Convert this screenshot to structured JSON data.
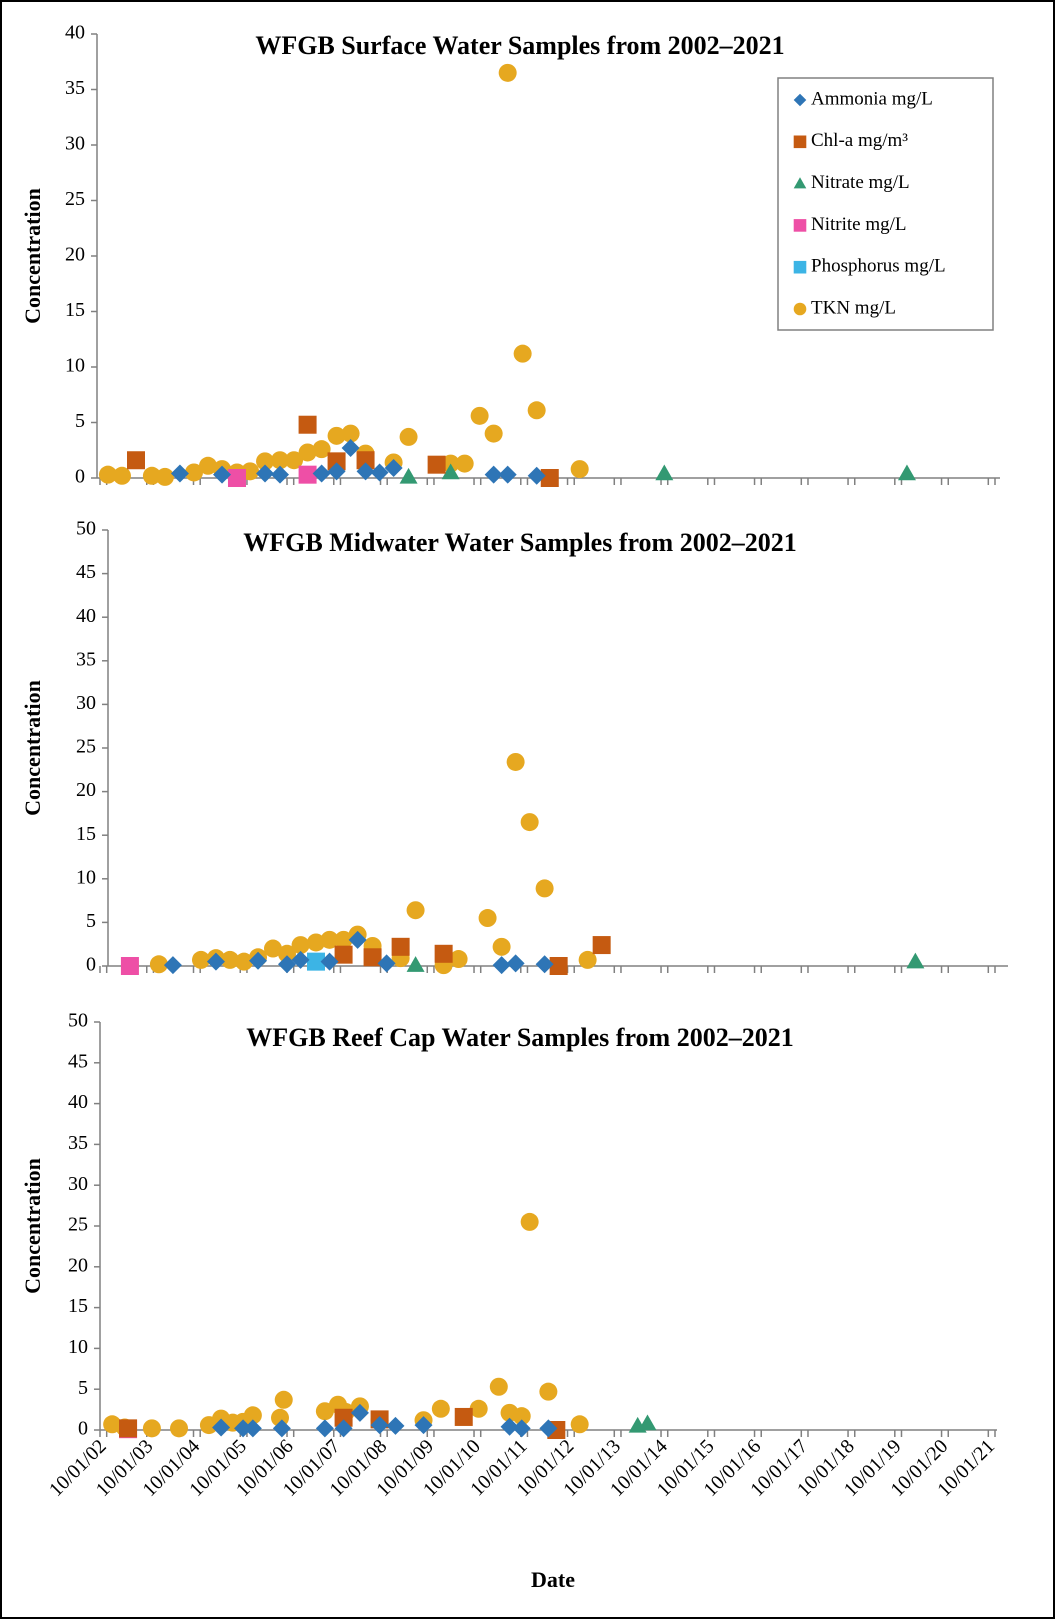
{
  "chart_data": [
    {
      "type": "scatter",
      "title": "WFGB Surface Water Samples from 2002–2021",
      "ylabel": "Concentration",
      "xlim": [
        2002.75,
        2022
      ],
      "ylim": [
        0,
        40
      ],
      "yticks": [
        0,
        5,
        10,
        15,
        20,
        25,
        30,
        35,
        40
      ],
      "legend": "upper right",
      "series": [
        {
          "name": "Ammonia mg/L",
          "color": "#2e75b6",
          "marker": "diamond",
          "x": [
            2004.46,
            2005.36,
            2006.28,
            2006.6,
            2007.49,
            2007.81,
            2008.11,
            2008.43,
            2008.73,
            2009.03,
            2011.17,
            2011.47,
            2012.09
          ],
          "values": [
            0.4,
            0.3,
            0.4,
            0.3,
            0.4,
            0.6,
            2.7,
            0.6,
            0.5,
            0.9,
            0.3,
            0.3,
            0.2
          ]
        },
        {
          "name": "Chl-a mg/m³",
          "color": "#c55a11",
          "marker": "square",
          "x": [
            2003.52,
            2007.19,
            2007.81,
            2008.43,
            2009.95,
            2012.37
          ],
          "values": [
            1.6,
            4.8,
            1.5,
            1.6,
            1.2,
            0
          ]
        },
        {
          "name": "Nitrate mg/L",
          "color": "#339972",
          "marker": "triangle",
          "x": [
            2009.35,
            2010.25,
            2014.82,
            2020.01
          ],
          "values": [
            0.1,
            0.5,
            0.4,
            0.4
          ]
        },
        {
          "name": "Nitrite mg/L",
          "color": "#ee4fa6",
          "marker": "square",
          "x": [
            2005.68,
            2007.19
          ],
          "values": [
            0,
            0.3
          ]
        },
        {
          "name": "Phosphorus mg/L",
          "color": "#3cb4e5",
          "marker": "square",
          "x": [],
          "values": []
        },
        {
          "name": "TKN mg/L",
          "color": "#e6a820",
          "marker": "circle",
          "x": [
            2002.92,
            2003.22,
            2003.86,
            2004.14,
            2004.76,
            2005.06,
            2005.36,
            2005.68,
            2005.96,
            2006.28,
            2006.6,
            2006.9,
            2007.19,
            2007.49,
            2007.81,
            2008.11,
            2008.43,
            2009.03,
            2009.35,
            2010.25,
            2010.55,
            2010.87,
            2011.17,
            2011.47,
            2011.79,
            2012.09,
            2013.01
          ],
          "values": [
            0.3,
            0.2,
            0.2,
            0.1,
            0.5,
            1.1,
            0.8,
            0.5,
            0.6,
            1.5,
            1.6,
            1.6,
            2.3,
            2.6,
            3.8,
            4.0,
            2.2,
            1.4,
            3.7,
            1.3,
            1.3,
            5.6,
            4.0,
            36.5,
            11.2,
            6.1,
            0.8
          ]
        }
      ]
    },
    {
      "type": "scatter",
      "title": "WFGB Midwater Water Samples from 2002–2021",
      "ylabel": "Concentration",
      "xlim": [
        2002.75,
        2022
      ],
      "ylim": [
        0,
        50
      ],
      "yticks": [
        0,
        5,
        10,
        15,
        20,
        25,
        30,
        35,
        40,
        45,
        50
      ],
      "series": [
        {
          "color": "#2e75b6",
          "marker": "diamond",
          "x": [
            2004.31,
            2005.23,
            2006.13,
            2006.75,
            2007.04,
            2007.66,
            2008.26,
            2008.88,
            2011.34,
            2011.64,
            2012.26
          ],
          "values": [
            0.1,
            0.5,
            0.6,
            0.2,
            0.7,
            0.5,
            3.0,
            0.3,
            0.1,
            0.3,
            0.2
          ]
        },
        {
          "color": "#c55a11",
          "marker": "square",
          "x": [
            2007.96,
            2008.58,
            2009.18,
            2010.1,
            2012.56,
            2013.48
          ],
          "values": [
            1.3,
            1.0,
            2.2,
            1.4,
            0,
            2.4
          ]
        },
        {
          "color": "#339972",
          "marker": "triangle",
          "x": [
            2009.5,
            2020.19
          ],
          "values": [
            0.1,
            0.5
          ]
        },
        {
          "color": "#ee4fa6",
          "marker": "square",
          "x": [
            2003.39
          ],
          "values": [
            0
          ]
        },
        {
          "color": "#3cb4e5",
          "marker": "square",
          "x": [
            2007.37
          ],
          "values": [
            0.5
          ]
        },
        {
          "color": "#e6a820",
          "marker": "circle",
          "x": [
            2003.39,
            2004.01,
            2004.91,
            2005.23,
            2005.53,
            2005.83,
            2006.13,
            2006.45,
            2006.75,
            2007.04,
            2007.37,
            2007.66,
            2007.96,
            2008.26,
            2008.58,
            2009.18,
            2009.5,
            2010.1,
            2010.42,
            2011.04,
            2011.34,
            2011.64,
            2011.94,
            2012.26,
            2013.18
          ],
          "values": [
            0,
            0.2,
            0.7,
            0.9,
            0.7,
            0.5,
            1.0,
            2.0,
            1.4,
            2.4,
            2.7,
            3.0,
            3.0,
            3.6,
            2.3,
            0.9,
            6.4,
            0.1,
            0.8,
            5.5,
            2.2,
            23.4,
            16.5,
            8.9,
            0.7
          ]
        }
      ]
    },
    {
      "type": "scatter",
      "title": "WFGB Reef Cap Water Samples from 2002–2021",
      "ylabel": "Concentration",
      "xlabel": "Date",
      "xlim": [
        2002.75,
        2022
      ],
      "ylim": [
        0,
        50
      ],
      "yticks": [
        0,
        5,
        10,
        15,
        20,
        25,
        30,
        35,
        40,
        45,
        50
      ],
      "xticks": [
        {
          "value": 2002.75,
          "label": "10/01/02"
        },
        {
          "value": 2003.75,
          "label": "10/01/03"
        },
        {
          "value": 2004.75,
          "label": "10/01/04"
        },
        {
          "value": 2005.75,
          "label": "10/01/05"
        },
        {
          "value": 2006.75,
          "label": "10/01/06"
        },
        {
          "value": 2007.75,
          "label": "10/01/07"
        },
        {
          "value": 2008.75,
          "label": "10/01/08"
        },
        {
          "value": 2009.75,
          "label": "10/01/09"
        },
        {
          "value": 2010.75,
          "label": "10/01/10"
        },
        {
          "value": 2011.75,
          "label": "10/01/11"
        },
        {
          "value": 2012.75,
          "label": "10/01/12"
        },
        {
          "value": 2013.75,
          "label": "10/01/13"
        },
        {
          "value": 2014.75,
          "label": "10/01/14"
        },
        {
          "value": 2015.75,
          "label": "10/01/15"
        },
        {
          "value": 2016.75,
          "label": "10/01/16"
        },
        {
          "value": 2017.75,
          "label": "10/01/17"
        },
        {
          "value": 2018.75,
          "label": "10/01/18"
        },
        {
          "value": 2019.75,
          "label": "10/01/19"
        },
        {
          "value": 2020.75,
          "label": "10/01/20"
        },
        {
          "value": 2021.75,
          "label": "10/01/21"
        }
      ],
      "series": [
        {
          "color": "#2e75b6",
          "marker": "diamond",
          "x": [
            2005.34,
            2005.81,
            2006.02,
            2006.64,
            2007.56,
            2007.96,
            2008.31,
            2008.73,
            2009.07,
            2009.67,
            2011.51,
            2011.77,
            2012.34
          ],
          "values": [
            0.3,
            0.2,
            0.2,
            0.2,
            0.2,
            0.2,
            2.1,
            0.6,
            0.5,
            0.6,
            0.4,
            0.2,
            0.2
          ]
        },
        {
          "color": "#c55a11",
          "marker": "square",
          "x": [
            2003.35,
            2007.96,
            2008.73,
            2010.53,
            2012.51
          ],
          "values": [
            0.2,
            1.5,
            1.3,
            1.6,
            0
          ]
        },
        {
          "color": "#339972",
          "marker": "triangle",
          "x": [
            2014.25,
            2014.46
          ],
          "values": [
            0.5,
            0.8
          ]
        },
        {
          "color": "#ee4fa6",
          "marker": "square",
          "x": [
            2003.35
          ],
          "values": [
            0.1
          ]
        },
        {
          "color": "#e6a820",
          "marker": "circle",
          "x": [
            2003.01,
            2003.28,
            2003.86,
            2004.44,
            2005.08,
            2005.34,
            2005.59,
            2005.81,
            2006.02,
            2006.6,
            2006.68,
            2007.56,
            2007.84,
            2008.01,
            2008.31,
            2008.73,
            2009.67,
            2010.04,
            2010.85,
            2011.28,
            2011.51,
            2011.77,
            2011.94,
            2012.34,
            2013.01
          ],
          "values": [
            0.7,
            0.3,
            0.2,
            0.2,
            0.6,
            1.4,
            0.9,
            1.0,
            1.8,
            1.5,
            3.7,
            2.3,
            3.1,
            2.2,
            2.9,
            1.2,
            1.2,
            2.6,
            2.6,
            5.3,
            2.1,
            1.7,
            25.5,
            4.7,
            0.7
          ]
        }
      ]
    }
  ]
}
